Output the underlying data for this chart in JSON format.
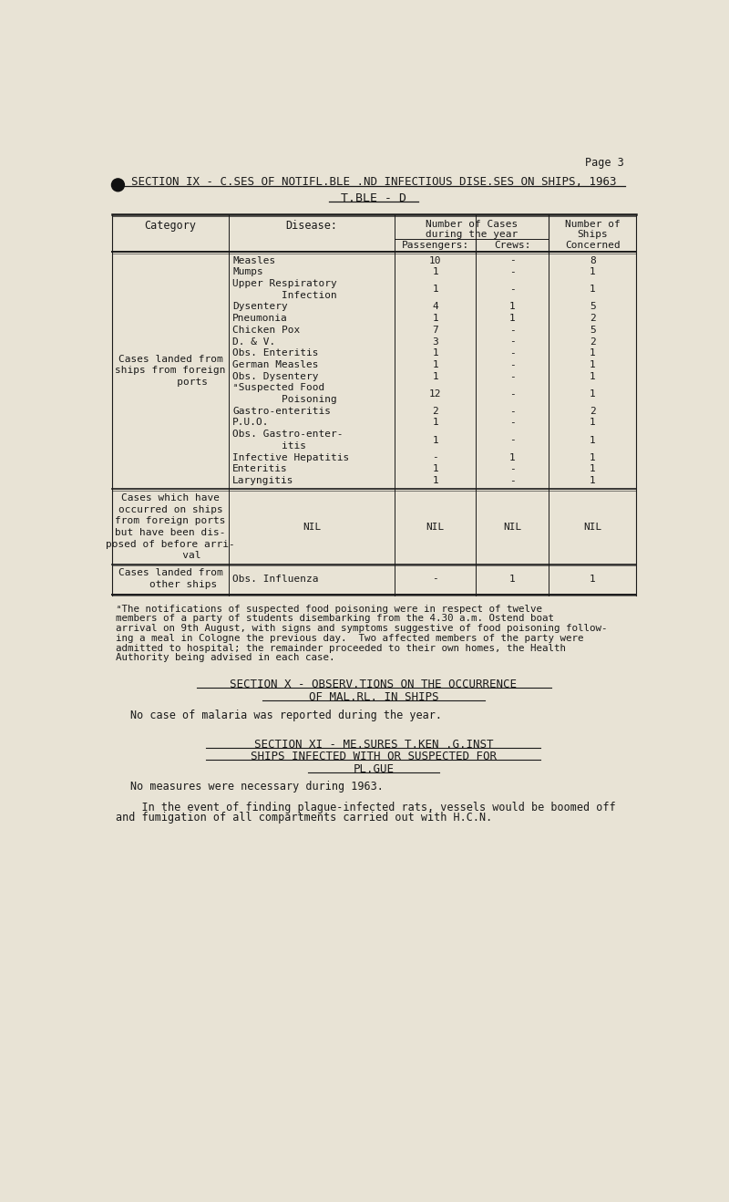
{
  "bg_color": "#e8e3d5",
  "text_color": "#1a1a1a",
  "page_label": "Page 3",
  "section_title": "SECTION IX - C.SES OF NOTIFL.BLE .ND INFECTIOUS DISE.SES ON SHIPS, 1963",
  "table_title": "T.BLE - D",
  "row_data": [
    [
      "Measles",
      "10",
      "-",
      "8"
    ],
    [
      "Mumps",
      "1",
      "-",
      "1"
    ],
    [
      "Upper Respiratory\n        Infection",
      "1",
      "-",
      "1"
    ],
    [
      "Dysentery",
      "4",
      "1",
      "5"
    ],
    [
      "Pneumonia",
      "1",
      "1",
      "2"
    ],
    [
      "Chicken Pox",
      "7",
      "-",
      "5"
    ],
    [
      "D. & V.",
      "3",
      "-",
      "2"
    ],
    [
      "Obs. Enteritis",
      "1",
      "-",
      "1"
    ],
    [
      "German Measles",
      "1",
      "-",
      "1"
    ],
    [
      "Obs. Dysentery",
      "1",
      "-",
      "1"
    ],
    [
      "ᵃSuspected Food\n        Poisoning",
      "12",
      "-",
      "1"
    ],
    [
      "Gastro-enteritis",
      "2",
      "-",
      "2"
    ],
    [
      "P.U.O.",
      "1",
      "-",
      "1"
    ],
    [
      "Obs. Gastro-enter-\n        itis",
      "1",
      "-",
      "1"
    ],
    [
      "Infective Hepatitis",
      "-",
      "1",
      "1"
    ],
    [
      "Enteritis",
      "1",
      "-",
      "1"
    ],
    [
      "Laryngitis",
      "1",
      "-",
      "1"
    ]
  ],
  "group1_label": "Cases landed from\nships from foreign\n       ports",
  "group2_label": "Cases which have\noccurred on ships\nfrom foreign ports\nbut have been dis-\nposed of before arri-\n       val",
  "group2_data": [
    "NIL",
    "NIL",
    "NIL",
    "NIL"
  ],
  "group3_label": "Cases landed from\n    other ships",
  "group3_data": [
    "Obs. Influenza",
    "-",
    "1",
    "1"
  ],
  "footnote_lines": [
    "ᵃThe notifications of suspected food poisoning were in respect of twelve",
    "members of a party of students disembarking from the 4.30 a.m. Ostend boat",
    "arrival on 9th August, with signs and symptoms suggestive of food poisoning follow-",
    "ing a meal in Cologne the previous day.  Two affected members of the party were",
    "admitted to hospital; the remainder proceeded to their own homes, the Health",
    "Authority being advised in each case."
  ],
  "sx_line1": "SECTION X - OBSERV.TIONS ON THE OCCURRENCE",
  "sx_line2": "OF MAL.RL. IN SHIPS",
  "sx_body": "No case of malaria was reported during the year.",
  "sxi_line1": "SECTION XI - ME.SURES T.KEN .G.INST",
  "sxi_line2": "SHIPS INFECTED WITH OR SUSPECTED FOR",
  "sxi_line3": "PL.GUE",
  "sxi_body1": "No measures were necessary during 1963.",
  "sxi_body2_lines": [
    "    In the event of finding plague-infected rats, vessels would be boomed off",
    "and fumigation of all compartments carried out with H.C.N."
  ]
}
